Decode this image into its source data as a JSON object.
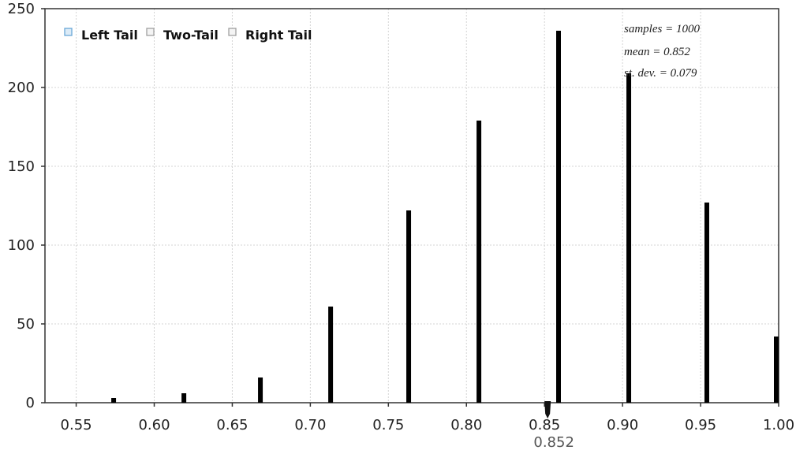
{
  "chart_data": {
    "type": "bar",
    "title": "",
    "xlabel": "",
    "ylabel": "",
    "xlim": [
      0.53,
      1.0
    ],
    "ylim": [
      0,
      250
    ],
    "xticks": [
      0.55,
      0.6,
      0.65,
      0.7,
      0.75,
      0.8,
      0.85,
      0.9,
      0.95,
      1.0
    ],
    "xtick_labels": [
      "0.55",
      "0.60",
      "0.65",
      "0.70",
      "0.75",
      "0.80",
      "0.85",
      "0.90",
      "0.95",
      "1.00"
    ],
    "yticks": [
      0,
      50,
      100,
      150,
      200,
      250
    ],
    "ytick_labels": [
      "0",
      "50",
      "100",
      "150",
      "200",
      "250"
    ],
    "grid": true,
    "bars": [
      {
        "x": 0.574,
        "y": 3
      },
      {
        "x": 0.619,
        "y": 6
      },
      {
        "x": 0.668,
        "y": 16
      },
      {
        "x": 0.713,
        "y": 61
      },
      {
        "x": 0.763,
        "y": 122
      },
      {
        "x": 0.808,
        "y": 179
      },
      {
        "x": 0.859,
        "y": 236
      },
      {
        "x": 0.904,
        "y": 209
      },
      {
        "x": 0.954,
        "y": 127
      },
      {
        "x": 0.999,
        "y": 42
      }
    ],
    "legend": {
      "placement": "top-left",
      "items": [
        {
          "label": "Left Tail",
          "color": "#6aa8d8"
        },
        {
          "label": "Two-Tail",
          "color": "#a0a0a0"
        },
        {
          "label": "Right Tail",
          "color": "#a0a0a0"
        }
      ]
    },
    "stats": {
      "placement": "top-right",
      "lines": [
        "samples = 1000",
        "mean = 0.852",
        "st. dev. = 0.079"
      ]
    },
    "mean_marker": {
      "value": 0.852,
      "label": "0.852"
    },
    "colors": {
      "bar": "#000000",
      "grid": "#d4d4d4",
      "frame": "#333333"
    }
  }
}
